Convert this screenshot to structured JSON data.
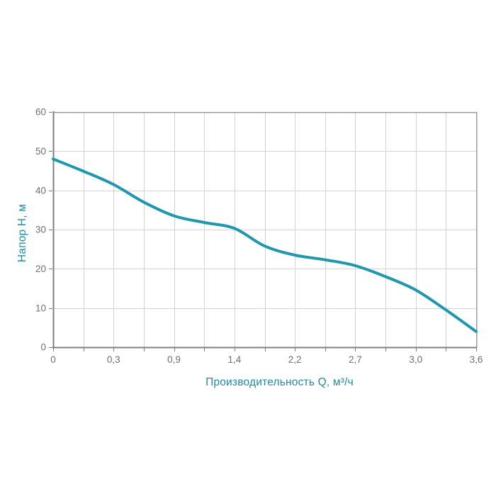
{
  "chart_data": {
    "type": "line",
    "title": "",
    "xlabel": "Производительность Q, м³/ч",
    "ylabel": "Напор H, м",
    "x_tick_labels": [
      "0",
      "0,3",
      "0,9",
      "1,4",
      "2,2",
      "2,7",
      "3,0",
      "3,6"
    ],
    "x_tick_values": [
      0,
      0.3,
      0.9,
      1.4,
      2.2,
      2.7,
      3.0,
      3.6
    ],
    "x_axis_scale": "labeled ticks equally spaced on screen; minor gridline and tick at the midpoint of every interval",
    "y_tick_labels": [
      "0",
      "10",
      "20",
      "30",
      "40",
      "50",
      "60"
    ],
    "y_ticks": [
      0,
      10,
      20,
      30,
      40,
      50,
      60
    ],
    "ylim": [
      0,
      60
    ],
    "grid": true,
    "legend": false,
    "series": [
      {
        "points": [
          [
            0,
            48
          ],
          [
            0.15,
            44.9
          ],
          [
            0.3,
            41.5
          ],
          [
            0.6,
            37
          ],
          [
            0.9,
            33.5
          ],
          [
            1.15,
            31.8
          ],
          [
            1.4,
            30.3
          ],
          [
            1.8,
            25.8
          ],
          [
            2.2,
            23.5
          ],
          [
            2.45,
            22.3
          ],
          [
            2.7,
            20.8
          ],
          [
            2.85,
            18
          ],
          [
            3.0,
            14.6
          ],
          [
            3.3,
            9.5
          ],
          [
            3.6,
            4
          ]
        ],
        "color": "#1F97AD"
      }
    ],
    "colors": {
      "curve": "#1F97AD",
      "axis_title": "#1E8CA8",
      "tick_label": "#6F6F6F",
      "gridline": "#D3D3D3",
      "axis_line": "#7F7F7F",
      "border": "#9C9C9C",
      "background": "#FFFFFF"
    }
  }
}
